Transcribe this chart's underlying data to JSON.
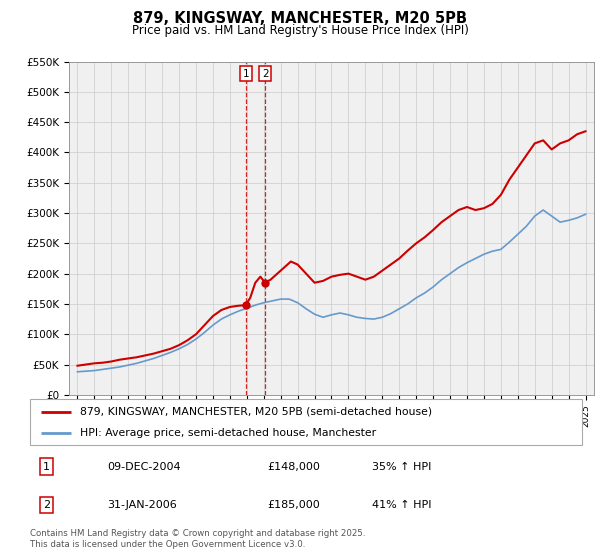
{
  "title": "879, KINGSWAY, MANCHESTER, M20 5PB",
  "subtitle": "Price paid vs. HM Land Registry's House Price Index (HPI)",
  "red_label": "879, KINGSWAY, MANCHESTER, M20 5PB (semi-detached house)",
  "blue_label": "HPI: Average price, semi-detached house, Manchester",
  "footnote": "Contains HM Land Registry data © Crown copyright and database right 2025.\nThis data is licensed under the Open Government Licence v3.0.",
  "sale_points": [
    {
      "num": 1,
      "date": "09-DEC-2004",
      "price": 148000,
      "pct": "35% ↑ HPI",
      "year": 2004.93
    },
    {
      "num": 2,
      "date": "31-JAN-2006",
      "price": 185000,
      "pct": "41% ↑ HPI",
      "year": 2006.08
    }
  ],
  "ylim": [
    0,
    550000
  ],
  "yticks": [
    0,
    50000,
    100000,
    150000,
    200000,
    250000,
    300000,
    350000,
    400000,
    450000,
    500000,
    550000
  ],
  "ytick_labels": [
    "£0",
    "£50K",
    "£100K",
    "£150K",
    "£200K",
    "£250K",
    "£300K",
    "£350K",
    "£400K",
    "£450K",
    "£500K",
    "£550K"
  ],
  "red_color": "#cc0000",
  "blue_color": "#6699cc",
  "dashed_color": "#cc0000",
  "background": "#ffffff",
  "grid_color": "#cccccc",
  "red_years": [
    1995.0,
    1995.5,
    1996.0,
    1996.5,
    1997.0,
    1997.5,
    1998.0,
    1998.5,
    1999.0,
    1999.5,
    2000.0,
    2000.5,
    2001.0,
    2001.5,
    2002.0,
    2002.5,
    2003.0,
    2003.5,
    2004.0,
    2004.5,
    2004.93,
    2005.2,
    2005.5,
    2005.8,
    2006.08,
    2006.4,
    2006.8,
    2007.2,
    2007.6,
    2008.0,
    2008.5,
    2009.0,
    2009.5,
    2010.0,
    2010.5,
    2011.0,
    2011.5,
    2012.0,
    2012.5,
    2013.0,
    2013.5,
    2014.0,
    2014.5,
    2015.0,
    2015.5,
    2016.0,
    2016.5,
    2017.0,
    2017.5,
    2018.0,
    2018.5,
    2019.0,
    2019.5,
    2020.0,
    2020.5,
    2021.0,
    2021.5,
    2022.0,
    2022.5,
    2023.0,
    2023.5,
    2024.0,
    2024.5,
    2025.0
  ],
  "red_values": [
    48000,
    50000,
    52000,
    53000,
    55000,
    58000,
    60000,
    62000,
    65000,
    68000,
    72000,
    76000,
    82000,
    90000,
    100000,
    115000,
    130000,
    140000,
    145000,
    147000,
    148000,
    160000,
    185000,
    195000,
    185000,
    190000,
    200000,
    210000,
    220000,
    215000,
    200000,
    185000,
    188000,
    195000,
    198000,
    200000,
    195000,
    190000,
    195000,
    205000,
    215000,
    225000,
    238000,
    250000,
    260000,
    272000,
    285000,
    295000,
    305000,
    310000,
    305000,
    308000,
    315000,
    330000,
    355000,
    375000,
    395000,
    415000,
    420000,
    405000,
    415000,
    420000,
    430000,
    435000
  ],
  "blue_years": [
    1995.0,
    1995.5,
    1996.0,
    1996.5,
    1997.0,
    1997.5,
    1998.0,
    1998.5,
    1999.0,
    1999.5,
    2000.0,
    2000.5,
    2001.0,
    2001.5,
    2002.0,
    2002.5,
    2003.0,
    2003.5,
    2004.0,
    2004.5,
    2005.0,
    2005.5,
    2006.0,
    2006.5,
    2007.0,
    2007.5,
    2008.0,
    2008.5,
    2009.0,
    2009.5,
    2010.0,
    2010.5,
    2011.0,
    2011.5,
    2012.0,
    2012.5,
    2013.0,
    2013.5,
    2014.0,
    2014.5,
    2015.0,
    2015.5,
    2016.0,
    2016.5,
    2017.0,
    2017.5,
    2018.0,
    2018.5,
    2019.0,
    2019.5,
    2020.0,
    2020.5,
    2021.0,
    2021.5,
    2022.0,
    2022.5,
    2023.0,
    2023.5,
    2024.0,
    2024.5,
    2025.0
  ],
  "blue_values": [
    38000,
    39000,
    40000,
    42000,
    44000,
    46000,
    49000,
    52000,
    56000,
    60000,
    65000,
    70000,
    76000,
    83000,
    92000,
    103000,
    115000,
    125000,
    132000,
    138000,
    143000,
    148000,
    152000,
    155000,
    158000,
    158000,
    152000,
    142000,
    133000,
    128000,
    132000,
    135000,
    132000,
    128000,
    126000,
    125000,
    128000,
    134000,
    142000,
    150000,
    160000,
    168000,
    178000,
    190000,
    200000,
    210000,
    218000,
    225000,
    232000,
    237000,
    240000,
    252000,
    265000,
    278000,
    295000,
    305000,
    295000,
    285000,
    288000,
    292000,
    298000
  ],
  "xmin": 1994.5,
  "xmax": 2025.5
}
